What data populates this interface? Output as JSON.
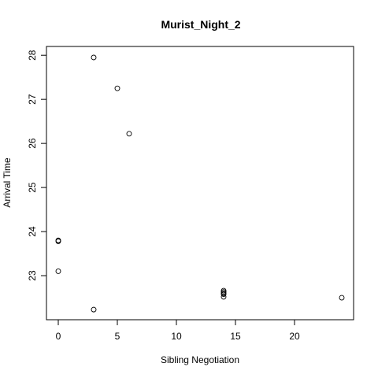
{
  "chart_data": {
    "type": "scatter",
    "title": "Murist_Night_2",
    "xlabel": "Sibling Negotiation",
    "ylabel": "Arrival Time",
    "xlim": [
      -1,
      25
    ],
    "ylim": [
      22.0,
      28.2
    ],
    "xticks": [
      0,
      5,
      10,
      15,
      20
    ],
    "yticks": [
      23,
      24,
      25,
      26,
      27,
      28
    ],
    "grid": false,
    "legend": "none",
    "points": [
      {
        "x": 3,
        "y": 27.95
      },
      {
        "x": 5,
        "y": 27.25
      },
      {
        "x": 6,
        "y": 26.22
      },
      {
        "x": 0,
        "y": 23.8
      },
      {
        "x": 0,
        "y": 23.78
      },
      {
        "x": 0,
        "y": 23.1
      },
      {
        "x": 3,
        "y": 22.23
      },
      {
        "x": 14,
        "y": 22.66
      },
      {
        "x": 14,
        "y": 22.63
      },
      {
        "x": 14,
        "y": 22.6
      },
      {
        "x": 14,
        "y": 22.58
      },
      {
        "x": 14,
        "y": 22.52
      },
      {
        "x": 24,
        "y": 22.5
      }
    ],
    "colors": {
      "point": "#000000",
      "axis": "#000000",
      "background": "#ffffff"
    }
  }
}
